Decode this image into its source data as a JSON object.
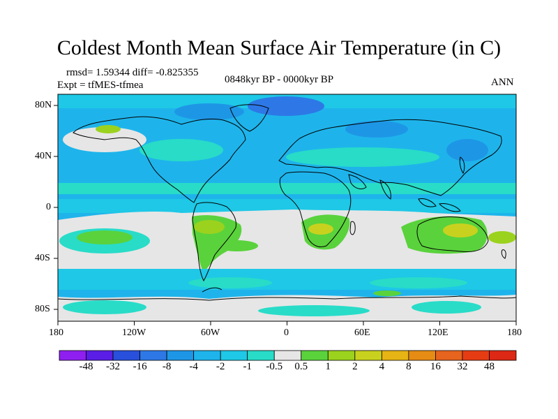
{
  "title": "Coldest Month Mean Surface Air Temperature (in C)",
  "stats": "rmsd= 1.59344 diff= -0.825355",
  "expt": "Expt = tfMES-tfmea",
  "period": "0848kyr BP - 0000kyr BP",
  "season": "ANN",
  "lat_labels": [
    "80N",
    "40N",
    "0",
    "40S",
    "80S"
  ],
  "lon_labels": [
    "180",
    "120W",
    "60W",
    "0",
    "60E",
    "120E",
    "180"
  ],
  "colorbar": {
    "labels": [
      "-48",
      "-32",
      "-16",
      "-8",
      "-4",
      "-2",
      "-1",
      "-0.5",
      "0.5",
      "1",
      "2",
      "4",
      "8",
      "16",
      "32",
      "48"
    ],
    "colors": [
      "#8f1ff0",
      "#5a1ee6",
      "#2850dc",
      "#2d78e6",
      "#1e96e6",
      "#1eb4eb",
      "#1ec8e6",
      "#28dcc8",
      "#e6e6e6",
      "#5ad23c",
      "#9bd21e",
      "#c8d21e",
      "#e6b414",
      "#e68c14",
      "#e6641e",
      "#e63c14",
      "#dc2814"
    ]
  },
  "colors": {
    "ocean_blue": "#1eb4eb",
    "light_blue": "#1ec8e6",
    "teal": "#28dcc8",
    "deep_blue": "#2d78e6",
    "neutral": "#e6e6e6",
    "green": "#5ad23c",
    "yellow_green": "#9bd21e",
    "yellow": "#c8d21e",
    "coast": "#000000"
  }
}
